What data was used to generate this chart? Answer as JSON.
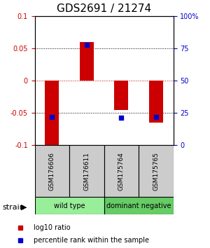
{
  "title": "GDS2691 / 21274",
  "samples": [
    "GSM176606",
    "GSM176611",
    "GSM175764",
    "GSM175765"
  ],
  "log10_ratio": [
    -0.1,
    0.06,
    -0.046,
    -0.065
  ],
  "percentile_rank": [
    22,
    78,
    21,
    22
  ],
  "group_label": "strain",
  "group_info": [
    {
      "xstart": -0.5,
      "xend": 1.5,
      "label": "wild type",
      "color": "#99ee99"
    },
    {
      "xstart": 1.5,
      "xend": 3.5,
      "label": "dominant negative",
      "color": "#66cc66"
    }
  ],
  "ylim": [
    -0.1,
    0.1
  ],
  "yticks_left": [
    -0.1,
    -0.05,
    0,
    0.05,
    0.1
  ],
  "yticks_right": [
    0,
    25,
    50,
    75,
    100
  ],
  "bar_color": "#cc0000",
  "dot_color": "#0000cc",
  "title_fontsize": 11,
  "label_fontsize": 7,
  "tick_fontsize": 7,
  "sample_fontsize": 6.5,
  "background_color": "#ffffff",
  "sample_box_color": "#cccccc",
  "zero_line_color": "#cc0000",
  "bar_width": 0.4
}
